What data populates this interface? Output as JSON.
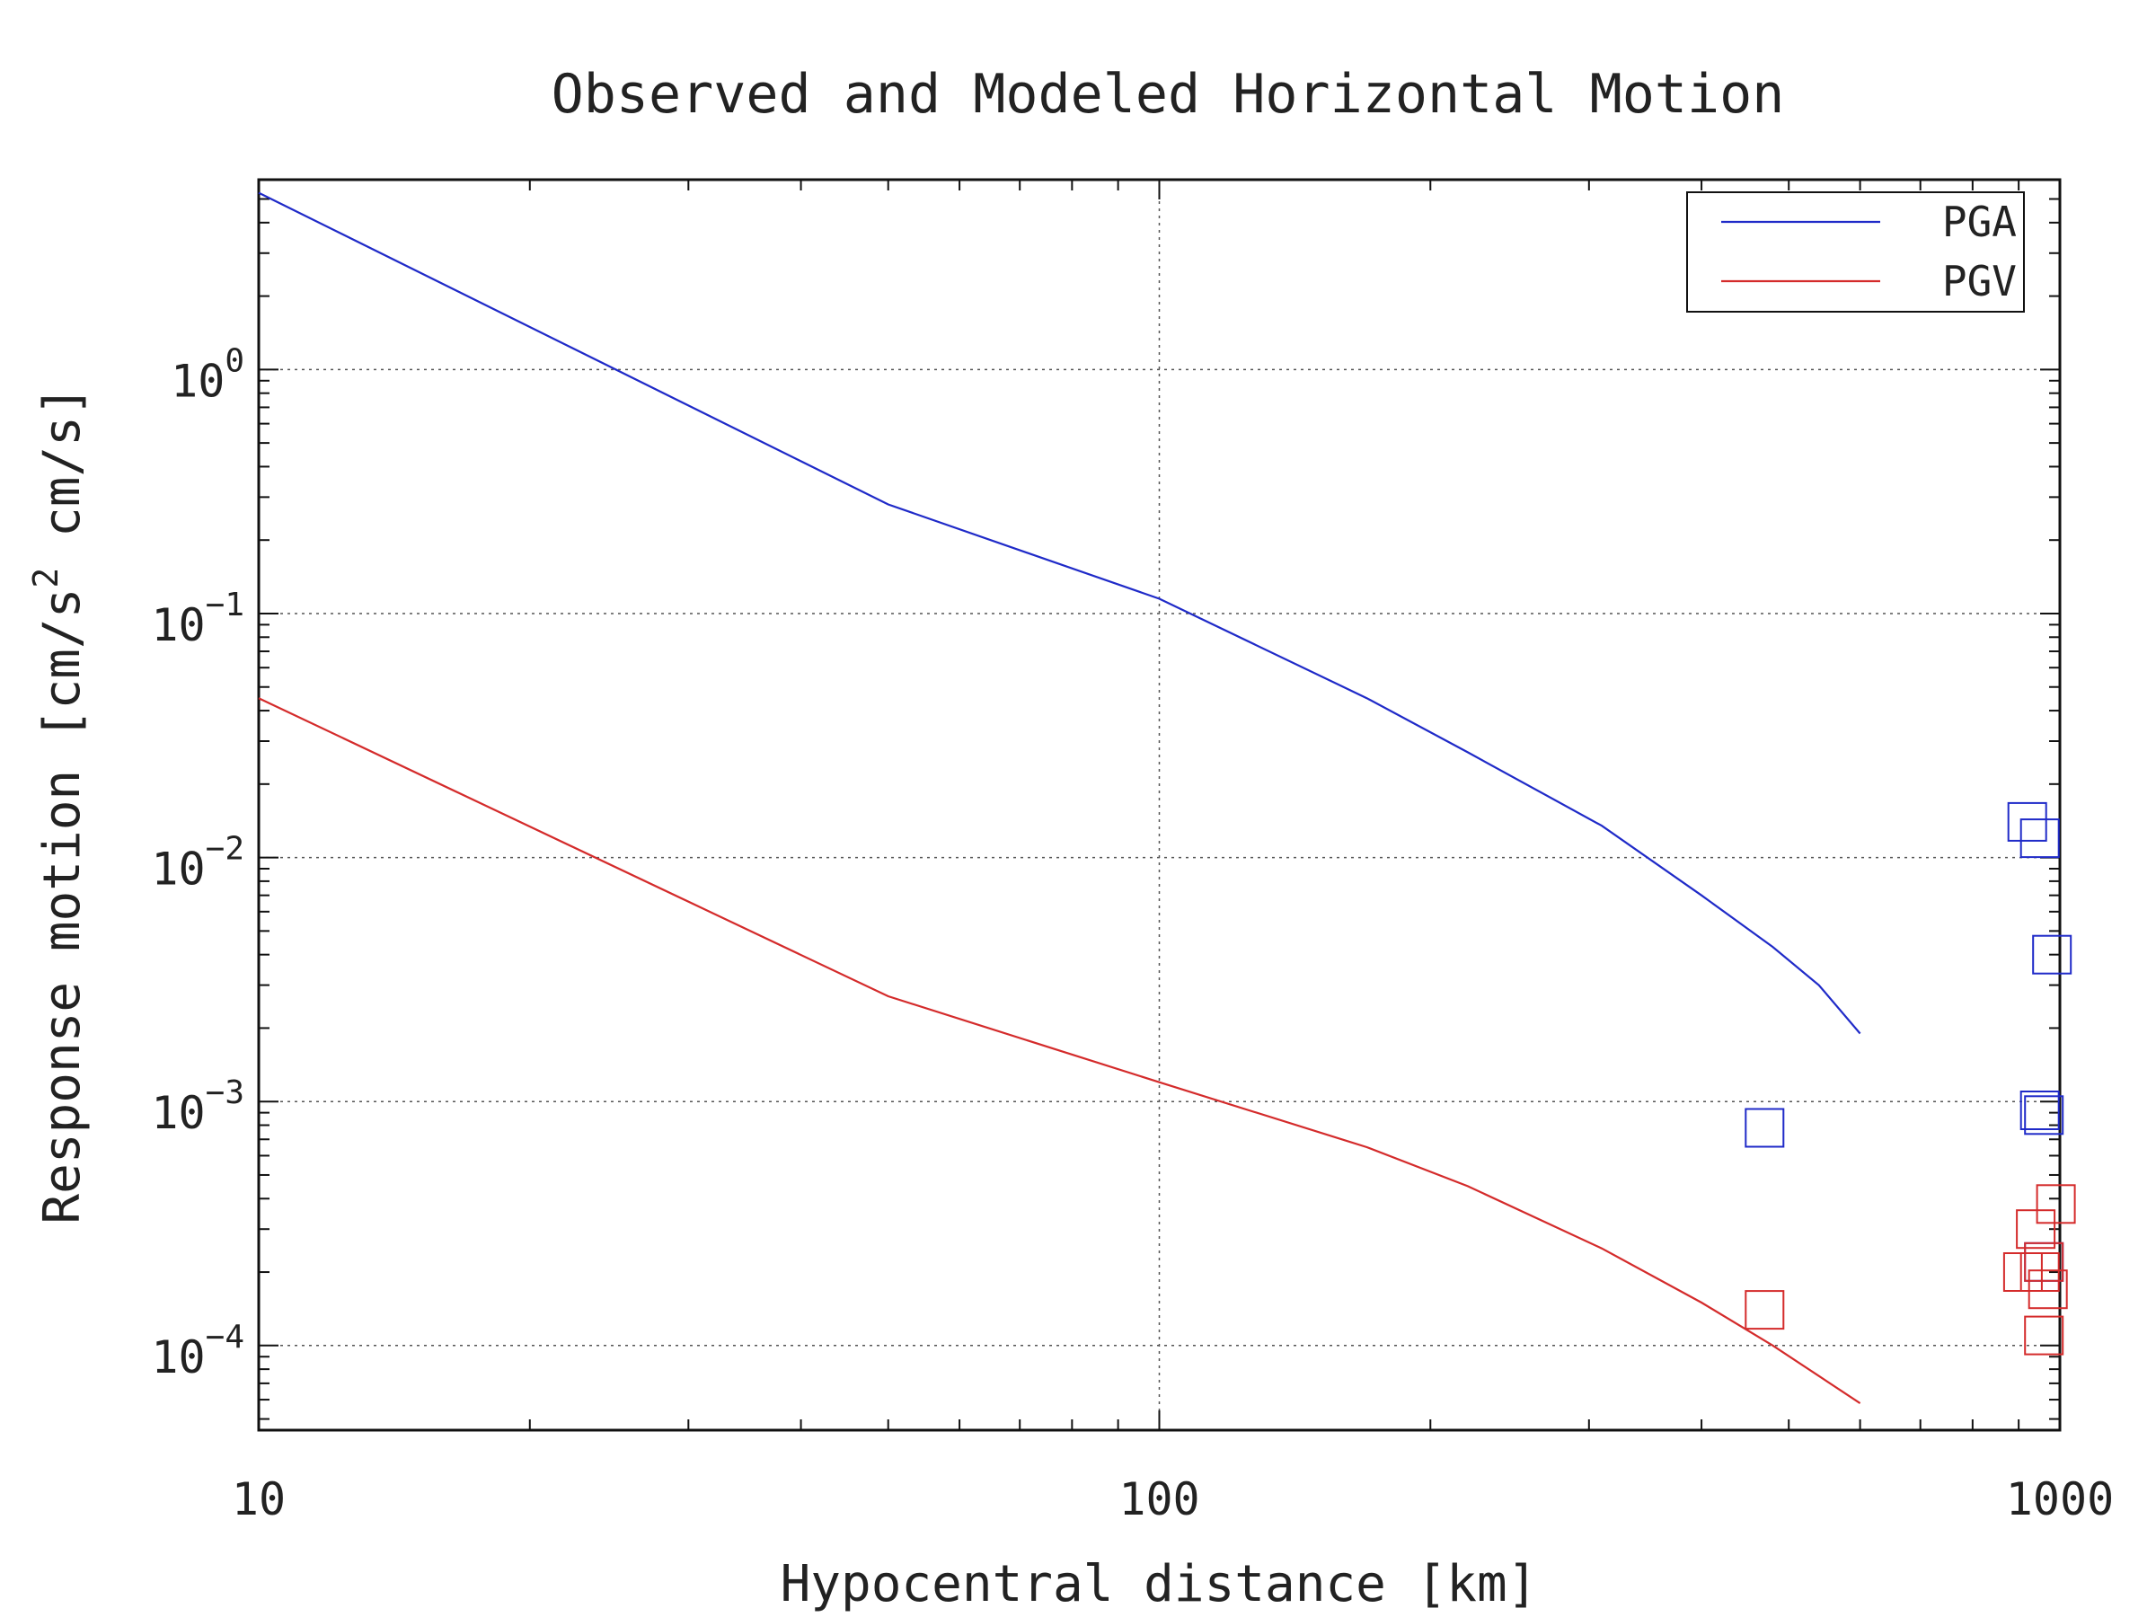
{
  "chart_data": {
    "type": "line",
    "title": "Observed and Modeled Horizontal Motion",
    "xlabel": "Hypocentral distance [km]",
    "ylabel": "Response motion  [cm/s",
    "ylabel_sup": "2",
    "ylabel_tail": "  cm/s]",
    "x_scale": "log",
    "y_scale": "log",
    "xlim": [
      10,
      1000
    ],
    "ylim": [
      4.5e-05,
      6
    ],
    "grid": true,
    "legend_position": "top-right",
    "x_ticks": [
      {
        "value": 10,
        "label": "10"
      },
      {
        "value": 100,
        "label": "100"
      },
      {
        "value": 1000,
        "label": "1000"
      }
    ],
    "y_ticks": [
      {
        "value": 1,
        "base": "10",
        "exp": "0"
      },
      {
        "value": 0.1,
        "base": "10",
        "exp": "−1"
      },
      {
        "value": 0.01,
        "base": "10",
        "exp": "−2"
      },
      {
        "value": 0.001,
        "base": "10",
        "exp": "−3"
      },
      {
        "value": 0.0001,
        "base": "10",
        "exp": "−4"
      }
    ],
    "series": [
      {
        "name": "PGA",
        "color": "#1f2ac8",
        "x": [
          10,
          50,
          100,
          170,
          220,
          310,
          400,
          480,
          540,
          600
        ],
        "y": [
          5.3,
          0.28,
          0.115,
          0.045,
          0.027,
          0.0135,
          0.007,
          0.0043,
          0.003,
          0.0019
        ],
        "observed_x": [
          470,
          920,
          950,
          980,
          950,
          960,
          960
        ],
        "observed_y": [
          0.00078,
          0.014,
          0.012,
          0.004,
          0.00092,
          0.00088,
          0.00022
        ]
      },
      {
        "name": "PGV",
        "color": "#d42b2b",
        "x": [
          10,
          50,
          100,
          170,
          220,
          310,
          400,
          480,
          540,
          600
        ],
        "y": [
          0.045,
          0.0027,
          0.0012,
          0.00065,
          0.00045,
          0.00025,
          0.00015,
          0.0001,
          7.5e-05,
          5.8e-05
        ],
        "observed_x": [
          470,
          910,
          940,
          950,
          960,
          970,
          960,
          990
        ],
        "observed_y": [
          0.00014,
          0.0002,
          0.0003,
          0.0002,
          0.00022,
          0.00017,
          0.00011,
          0.00038
        ]
      }
    ]
  }
}
